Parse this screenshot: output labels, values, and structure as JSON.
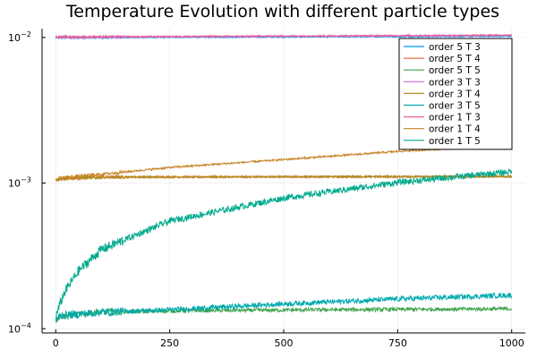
{
  "chart_data": {
    "type": "line",
    "title": "Temperature Evolution with different particle types",
    "xlabel": "",
    "ylabel": "",
    "xlim": [
      -30,
      1030
    ],
    "ylim": [
      9.35e-05,
      0.0115
    ],
    "yscale": "log",
    "grid": true,
    "legend_position": "top-right",
    "x_ticks": [
      0,
      250,
      500,
      750,
      1000
    ],
    "x_tick_labels": [
      "0",
      "250",
      "500",
      "750",
      "1000"
    ],
    "y_ticks": [
      0.0001,
      0.001,
      0.01
    ],
    "y_tick_labels": [
      {
        "base": "10",
        "exp": "−4"
      },
      {
        "base": "10",
        "exp": "−3"
      },
      {
        "base": "10",
        "exp": "−2"
      }
    ],
    "series": [
      {
        "name": "order 5 T 3",
        "color": "#009AFA",
        "noise": 0.01,
        "points": [
          [
            0,
            0.00995
          ],
          [
            1000,
            0.0102
          ]
        ]
      },
      {
        "name": "order 5 T 4",
        "color": "#E36F47",
        "noise": 0.015,
        "points": [
          [
            0,
            0.00104
          ],
          [
            10,
            0.00107
          ],
          [
            100,
            0.0011
          ],
          [
            1000,
            0.00111
          ]
        ]
      },
      {
        "name": "order 5 T 5",
        "color": "#3EA44E",
        "noise": 0.03,
        "points": [
          [
            0,
            0.000115
          ],
          [
            10,
            0.000122
          ],
          [
            100,
            0.00013
          ],
          [
            300,
            0.000133
          ],
          [
            600,
            0.000135
          ],
          [
            1000,
            0.000137
          ]
        ]
      },
      {
        "name": "order 3 T 3",
        "color": "#C271D2",
        "noise": 0.01,
        "points": [
          [
            0,
            0.01
          ],
          [
            1000,
            0.0103
          ]
        ]
      },
      {
        "name": "order 3 T 4",
        "color": "#AC8E18",
        "noise": 0.015,
        "points": [
          [
            0,
            0.00105
          ],
          [
            10,
            0.00107
          ],
          [
            100,
            0.0011
          ],
          [
            1000,
            0.00111
          ]
        ]
      },
      {
        "name": "order 3 T 5",
        "color": "#00A9AD",
        "noise": 0.04,
        "points": [
          [
            0,
            0.000115
          ],
          [
            10,
            0.000123
          ],
          [
            100,
            0.00013
          ],
          [
            250,
            0.000135
          ],
          [
            500,
            0.000148
          ],
          [
            750,
            0.00016
          ],
          [
            1000,
            0.00017
          ]
        ]
      },
      {
        "name": "order 1 T 3",
        "color": "#ED5E93",
        "noise": 0.01,
        "points": [
          [
            0,
            0.0101
          ],
          [
            1000,
            0.0104
          ]
        ]
      },
      {
        "name": "order 1 T 4",
        "color": "#C68225",
        "noise": 0.015,
        "points": [
          [
            0,
            0.00105
          ],
          [
            10,
            0.00109
          ],
          [
            100,
            0.00115
          ],
          [
            250,
            0.00128
          ],
          [
            500,
            0.00145
          ],
          [
            750,
            0.00165
          ],
          [
            1000,
            0.00182
          ]
        ]
      },
      {
        "name": "order 1 T 5",
        "color": "#00A98D",
        "noise": 0.05,
        "points": [
          [
            0,
            0.00012
          ],
          [
            10,
            0.00015
          ],
          [
            20,
            0.00018
          ],
          [
            50,
            0.00025
          ],
          [
            100,
            0.00035
          ],
          [
            250,
            0.00055
          ],
          [
            500,
            0.00079
          ],
          [
            750,
            0.00101
          ],
          [
            1000,
            0.0012
          ]
        ]
      }
    ]
  }
}
